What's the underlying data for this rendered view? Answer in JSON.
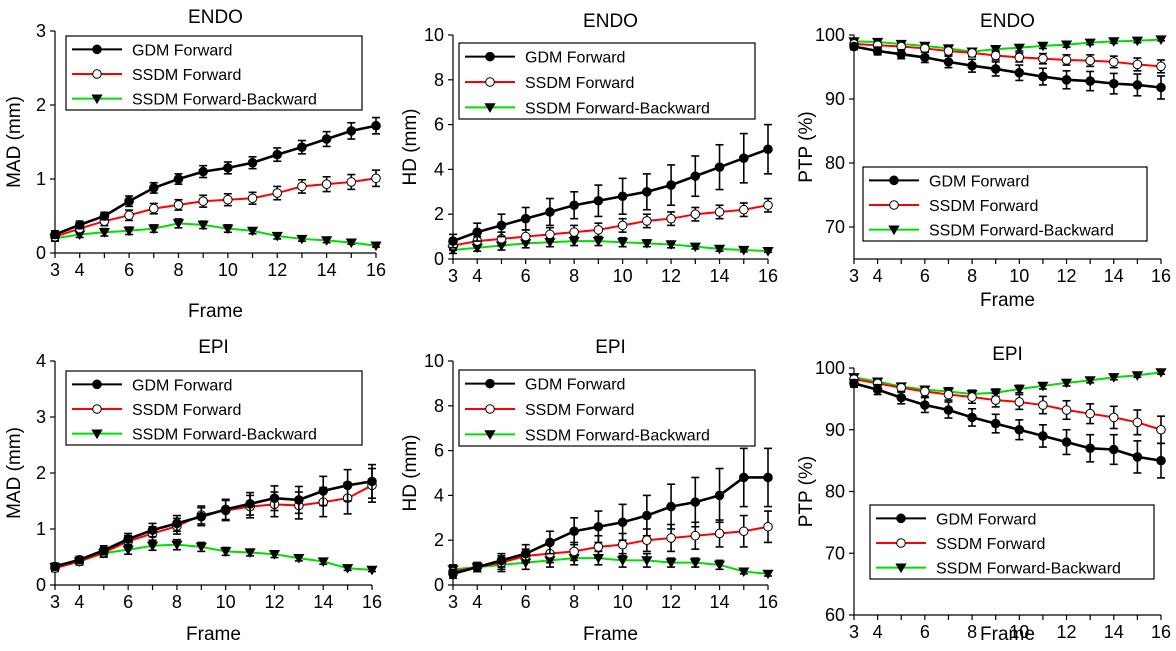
{
  "chart_data": [
    {
      "type": "line",
      "title": "ENDO",
      "xlabel": "Frame",
      "ylabel": "MAD (mm)",
      "x": [
        3,
        4,
        5,
        6,
        7,
        8,
        9,
        10,
        11,
        12,
        13,
        14,
        15,
        16
      ],
      "xticks": [
        3,
        4,
        6,
        8,
        10,
        12,
        14,
        16
      ],
      "ylim": [
        0,
        3
      ],
      "yticks": [
        0,
        1,
        2,
        3
      ],
      "legend_position": "top-left",
      "series": [
        {
          "name": "GDM Forward",
          "color": "#000000",
          "marker": "filled-circle",
          "values": [
            0.25,
            0.38,
            0.5,
            0.7,
            0.88,
            1.0,
            1.1,
            1.15,
            1.22,
            1.33,
            1.43,
            1.54,
            1.65,
            1.72
          ],
          "errors": [
            0.05,
            0.05,
            0.05,
            0.07,
            0.07,
            0.07,
            0.08,
            0.08,
            0.08,
            0.09,
            0.09,
            0.1,
            0.11,
            0.11
          ]
        },
        {
          "name": "SSDM Forward",
          "color": "#ff0000",
          "marker": "open-circle",
          "values": [
            0.22,
            0.33,
            0.43,
            0.51,
            0.6,
            0.65,
            0.7,
            0.72,
            0.74,
            0.81,
            0.9,
            0.93,
            0.96,
            1.01
          ],
          "errors": [
            0.05,
            0.05,
            0.06,
            0.07,
            0.07,
            0.07,
            0.08,
            0.08,
            0.08,
            0.09,
            0.09,
            0.1,
            0.1,
            0.11
          ]
        },
        {
          "name": "SSDM Forward-Backward",
          "color": "#00dd00",
          "marker": "filled-triangle-down",
          "values": [
            0.2,
            0.25,
            0.28,
            0.3,
            0.33,
            0.4,
            0.38,
            0.33,
            0.3,
            0.23,
            0.19,
            0.17,
            0.14,
            0.1
          ],
          "errors": [
            0.04,
            0.04,
            0.05,
            0.05,
            0.05,
            0.06,
            0.05,
            0.05,
            0.04,
            0.04,
            0.03,
            0.03,
            0.02,
            0.02
          ]
        }
      ]
    },
    {
      "type": "line",
      "title": "ENDO",
      "xlabel": "",
      "ylabel": "HD (mm)",
      "x": [
        3,
        4,
        5,
        6,
        7,
        8,
        9,
        10,
        11,
        12,
        13,
        14,
        15,
        16
      ],
      "xticks": [
        3,
        4,
        6,
        8,
        10,
        12,
        14,
        16
      ],
      "ylim": [
        0,
        10
      ],
      "yticks": [
        0,
        2,
        4,
        6,
        8,
        10
      ],
      "legend_position": "top-left",
      "series": [
        {
          "name": "GDM Forward",
          "color": "#000000",
          "marker": "filled-circle",
          "values": [
            0.8,
            1.2,
            1.5,
            1.8,
            2.1,
            2.4,
            2.6,
            2.8,
            3.0,
            3.3,
            3.7,
            4.1,
            4.5,
            4.9
          ],
          "errors": [
            0.3,
            0.4,
            0.5,
            0.5,
            0.6,
            0.6,
            0.7,
            0.8,
            0.8,
            0.9,
            0.9,
            1.0,
            1.1,
            1.1
          ]
        },
        {
          "name": "SSDM Forward",
          "color": "#ff0000",
          "marker": "open-circle",
          "values": [
            0.6,
            0.8,
            0.9,
            1.0,
            1.1,
            1.2,
            1.3,
            1.5,
            1.7,
            1.8,
            2.0,
            2.1,
            2.2,
            2.4
          ],
          "errors": [
            0.2,
            0.2,
            0.3,
            0.3,
            0.3,
            0.3,
            0.3,
            0.3,
            0.3,
            0.3,
            0.3,
            0.3,
            0.3,
            0.3
          ]
        },
        {
          "name": "SSDM Forward-Backward",
          "color": "#00dd00",
          "marker": "filled-triangle-down",
          "values": [
            0.4,
            0.5,
            0.6,
            0.7,
            0.75,
            0.8,
            0.8,
            0.75,
            0.7,
            0.65,
            0.55,
            0.45,
            0.4,
            0.35
          ],
          "errors": [
            0.15,
            0.15,
            0.2,
            0.2,
            0.2,
            0.2,
            0.2,
            0.2,
            0.15,
            0.15,
            0.1,
            0.1,
            0.08,
            0.05
          ]
        }
      ]
    },
    {
      "type": "line",
      "title": "ENDO",
      "xlabel": "Frame",
      "ylabel": "PTP (%)",
      "x": [
        3,
        4,
        5,
        6,
        7,
        8,
        9,
        10,
        11,
        12,
        13,
        14,
        15,
        16
      ],
      "xticks": [
        3,
        4,
        6,
        8,
        10,
        12,
        14,
        16
      ],
      "ylim": [
        65,
        100
      ],
      "yticks": [
        70,
        80,
        90,
        100
      ],
      "legend_position": "bottom-left",
      "series": [
        {
          "name": "GDM Forward",
          "color": "#000000",
          "marker": "filled-circle",
          "values": [
            98.2,
            97.5,
            97.0,
            96.5,
            95.8,
            95.2,
            94.7,
            94.1,
            93.5,
            93.0,
            92.8,
            92.4,
            92.2,
            91.8
          ],
          "errors": [
            0.5,
            0.6,
            0.7,
            0.8,
            0.9,
            1.0,
            1.1,
            1.2,
            1.3,
            1.4,
            1.5,
            1.6,
            1.7,
            1.8
          ]
        },
        {
          "name": "SSDM Forward",
          "color": "#ff0000",
          "marker": "open-circle",
          "values": [
            98.6,
            98.4,
            98.2,
            97.9,
            97.5,
            97.2,
            96.8,
            96.5,
            96.3,
            96.1,
            96.0,
            95.8,
            95.4,
            95.1
          ],
          "errors": [
            0.4,
            0.4,
            0.5,
            0.5,
            0.6,
            0.6,
            0.7,
            0.7,
            0.8,
            0.8,
            0.9,
            0.9,
            1.0,
            1.0
          ]
        },
        {
          "name": "SSDM Forward-Backward",
          "color": "#00dd00",
          "marker": "filled-triangle-down",
          "values": [
            99.0,
            98.9,
            98.6,
            98.3,
            97.9,
            97.4,
            97.8,
            98.0,
            98.3,
            98.5,
            98.8,
            99.0,
            99.1,
            99.3
          ],
          "errors": [
            0.3,
            0.3,
            0.4,
            0.4,
            0.5,
            0.5,
            0.5,
            0.5,
            0.4,
            0.4,
            0.3,
            0.3,
            0.3,
            0.2
          ]
        }
      ]
    },
    {
      "type": "line",
      "title": "EPI",
      "xlabel": "Frame",
      "ylabel": "MAD (mm)",
      "x": [
        3,
        4,
        5,
        6,
        7,
        8,
        9,
        10,
        11,
        12,
        13,
        14,
        15,
        16
      ],
      "xticks": [
        3,
        4,
        6,
        8,
        10,
        12,
        14,
        16
      ],
      "ylim": [
        0,
        4
      ],
      "yticks": [
        0,
        1,
        2,
        3,
        4
      ],
      "legend_position": "top-left",
      "series": [
        {
          "name": "GDM Forward",
          "color": "#000000",
          "marker": "filled-circle",
          "values": [
            0.33,
            0.45,
            0.62,
            0.82,
            0.98,
            1.1,
            1.22,
            1.35,
            1.45,
            1.55,
            1.52,
            1.68,
            1.78,
            1.85
          ],
          "errors": [
            0.06,
            0.06,
            0.08,
            0.1,
            0.12,
            0.14,
            0.16,
            0.18,
            0.2,
            0.22,
            0.24,
            0.26,
            0.28,
            0.3
          ]
        },
        {
          "name": "SSDM Forward",
          "color": "#ff0000",
          "marker": "open-circle",
          "values": [
            0.3,
            0.42,
            0.58,
            0.78,
            0.92,
            1.05,
            1.25,
            1.33,
            1.4,
            1.44,
            1.42,
            1.48,
            1.55,
            1.78
          ],
          "errors": [
            0.06,
            0.06,
            0.08,
            0.1,
            0.12,
            0.14,
            0.16,
            0.18,
            0.2,
            0.22,
            0.24,
            0.26,
            0.28,
            0.3
          ]
        },
        {
          "name": "SSDM Forward-Backward",
          "color": "#00dd00",
          "marker": "filled-triangle-down",
          "values": [
            0.32,
            0.42,
            0.57,
            0.63,
            0.7,
            0.72,
            0.68,
            0.6,
            0.58,
            0.55,
            0.48,
            0.42,
            0.3,
            0.27
          ],
          "errors": [
            0.06,
            0.06,
            0.07,
            0.08,
            0.08,
            0.09,
            0.08,
            0.07,
            0.06,
            0.06,
            0.05,
            0.05,
            0.04,
            0.03
          ]
        }
      ]
    },
    {
      "type": "line",
      "title": "EPI",
      "xlabel": "Frame",
      "ylabel": "HD (mm)",
      "x": [
        3,
        4,
        5,
        6,
        7,
        8,
        9,
        10,
        11,
        12,
        13,
        14,
        15,
        16
      ],
      "xticks": [
        3,
        4,
        6,
        8,
        10,
        12,
        14,
        16
      ],
      "ylim": [
        0,
        10
      ],
      "yticks": [
        0,
        2,
        4,
        6,
        8,
        10
      ],
      "legend_position": "top-left",
      "series": [
        {
          "name": "GDM Forward",
          "color": "#000000",
          "marker": "filled-circle",
          "values": [
            0.5,
            0.8,
            1.1,
            1.4,
            1.9,
            2.4,
            2.6,
            2.8,
            3.1,
            3.5,
            3.7,
            4.0,
            4.8,
            4.8
          ],
          "errors": [
            0.2,
            0.2,
            0.3,
            0.4,
            0.5,
            0.6,
            0.7,
            0.8,
            0.9,
            1.0,
            1.1,
            1.2,
            1.3,
            1.3
          ]
        },
        {
          "name": "SSDM Forward",
          "color": "#ff0000",
          "marker": "open-circle",
          "values": [
            0.6,
            0.8,
            1.0,
            1.3,
            1.4,
            1.5,
            1.7,
            1.8,
            2.0,
            2.1,
            2.2,
            2.3,
            2.4,
            2.6
          ],
          "errors": [
            0.2,
            0.2,
            0.3,
            0.3,
            0.4,
            0.4,
            0.5,
            0.5,
            0.5,
            0.6,
            0.6,
            0.6,
            0.7,
            0.7
          ]
        },
        {
          "name": "SSDM Forward-Backward",
          "color": "#00dd00",
          "marker": "filled-triangle-down",
          "values": [
            0.7,
            0.8,
            0.9,
            1.0,
            1.1,
            1.2,
            1.2,
            1.1,
            1.1,
            1.0,
            1.0,
            0.9,
            0.6,
            0.5
          ],
          "errors": [
            0.2,
            0.2,
            0.3,
            0.3,
            0.3,
            0.3,
            0.3,
            0.3,
            0.3,
            0.2,
            0.2,
            0.2,
            0.1,
            0.1
          ]
        }
      ]
    },
    {
      "type": "line",
      "title": "EPI",
      "xlabel": "Frame",
      "ylabel": "PTP (%)",
      "x": [
        3,
        4,
        5,
        6,
        7,
        8,
        9,
        10,
        11,
        12,
        13,
        14,
        15,
        16
      ],
      "xticks": [
        3,
        4,
        6,
        8,
        10,
        12,
        14,
        16
      ],
      "ylim": [
        60,
        100
      ],
      "yticks": [
        60,
        70,
        80,
        90,
        100
      ],
      "legend_position": "bottom-left",
      "series": [
        {
          "name": "GDM Forward",
          "color": "#000000",
          "marker": "filled-circle",
          "values": [
            97.5,
            96.5,
            95.2,
            94.0,
            93.2,
            92.0,
            91.0,
            90.0,
            89.0,
            88.0,
            87.0,
            86.8,
            85.6,
            85.0
          ],
          "errors": [
            0.6,
            0.8,
            1.0,
            1.2,
            1.3,
            1.4,
            1.5,
            1.6,
            1.8,
            2.0,
            2.2,
            2.4,
            2.6,
            2.8
          ]
        },
        {
          "name": "SSDM Forward",
          "color": "#ff0000",
          "marker": "open-circle",
          "values": [
            98.2,
            97.5,
            96.8,
            96.2,
            95.7,
            95.3,
            94.8,
            94.5,
            94.0,
            93.2,
            92.6,
            92.0,
            91.2,
            90.0
          ],
          "errors": [
            0.5,
            0.6,
            0.7,
            0.8,
            0.9,
            1.0,
            1.1,
            1.2,
            1.4,
            1.5,
            1.6,
            1.8,
            2.0,
            2.2
          ]
        },
        {
          "name": "SSDM Forward-Backward",
          "color": "#00dd00",
          "marker": "filled-triangle-down",
          "values": [
            98.5,
            97.8,
            97.0,
            96.5,
            96.2,
            95.8,
            96.0,
            96.6,
            97.1,
            97.6,
            98.0,
            98.5,
            98.8,
            99.3
          ],
          "errors": [
            0.4,
            0.4,
            0.5,
            0.5,
            0.6,
            0.6,
            0.6,
            0.6,
            0.5,
            0.5,
            0.4,
            0.4,
            0.3,
            0.3
          ]
        }
      ]
    }
  ]
}
